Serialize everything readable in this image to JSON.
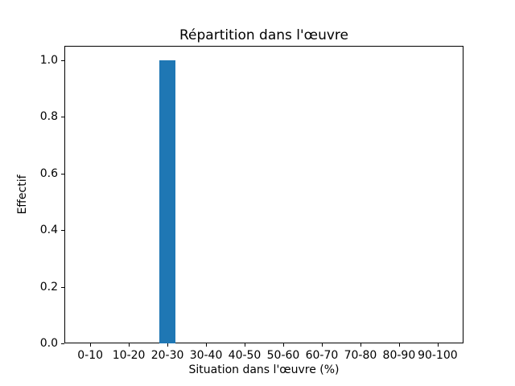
{
  "chart_data": {
    "type": "bar",
    "title": "Répartition dans l'œuvre",
    "xlabel": "Situation dans l'œuvre (%)",
    "ylabel": "Effectif",
    "categories": [
      "0-10",
      "10-20",
      "20-30",
      "30-40",
      "40-50",
      "50-60",
      "60-70",
      "70-80",
      "80-90",
      "90-100"
    ],
    "values": [
      0,
      0,
      1,
      0,
      0,
      0,
      0,
      0,
      0,
      0
    ],
    "yticks": [
      0.0,
      0.2,
      0.4,
      0.6,
      0.8,
      1.0
    ],
    "ytick_labels": [
      "0.0",
      "0.2",
      "0.4",
      "0.6",
      "0.8",
      "1.0"
    ],
    "ylim": [
      0,
      1.05
    ],
    "bar_color": "#1f77b4",
    "grid": false,
    "legend": "none",
    "background_color": "#ffffff"
  }
}
